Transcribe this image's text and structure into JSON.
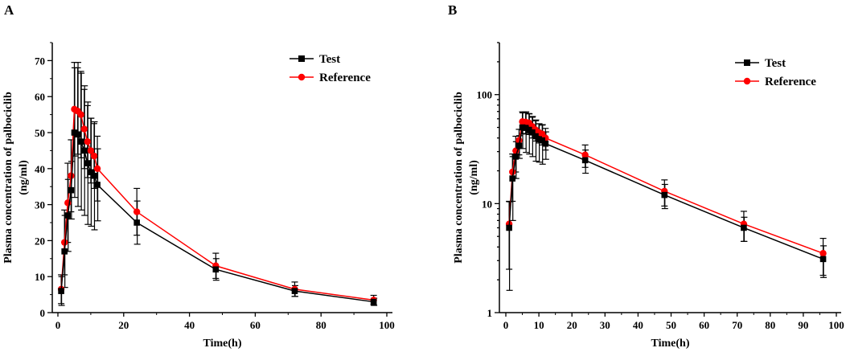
{
  "chart_data": [
    {
      "panel_label": "A",
      "type": "line",
      "yscale": "linear",
      "xlabel": "Time(h)",
      "ylabel": "Plasma concentration of palbociclib",
      "ylabel_unit": "(ng/ml)",
      "xlim": [
        0,
        100
      ],
      "ylim": [
        0,
        75
      ],
      "xticks": [
        0,
        20,
        40,
        60,
        80,
        100
      ],
      "yticks": [
        0,
        10,
        20,
        30,
        40,
        50,
        60,
        70
      ],
      "legend_position": "top-right",
      "x": [
        1,
        2,
        3,
        4,
        5,
        6,
        7,
        8,
        9,
        10,
        11,
        12,
        24,
        48,
        72,
        96
      ],
      "series": [
        {
          "name": "Test",
          "color": "#000000",
          "marker": "square",
          "values": [
            6,
            17,
            27,
            34,
            50,
            49.5,
            47.5,
            45,
            41.5,
            39,
            38,
            35.5,
            25,
            12,
            6,
            3
          ],
          "sd": [
            4,
            10,
            10,
            8,
            18,
            20,
            19,
            18,
            17,
            15,
            15,
            10,
            6,
            3,
            1.5,
            1
          ]
        },
        {
          "name": "Reference",
          "color": "#ff0000",
          "marker": "circle",
          "values": [
            6.5,
            19.5,
            30.5,
            38,
            56.5,
            56,
            55,
            51,
            47.5,
            45,
            43.5,
            40,
            28,
            13,
            6.5,
            3.5
          ],
          "sd": [
            4,
            9,
            11,
            10,
            13,
            12,
            12,
            11,
            10,
            9,
            9,
            9,
            6.5,
            3.5,
            2,
            1.3
          ]
        }
      ]
    },
    {
      "panel_label": "B",
      "type": "line",
      "yscale": "log",
      "xlabel": "Time(h)",
      "ylabel": "Plasma concentration of palbociclib",
      "ylabel_unit": "(ng/ml)",
      "xlim": [
        -2,
        101
      ],
      "ylim": [
        1,
        300
      ],
      "xticks": [
        0,
        10,
        20,
        30,
        40,
        50,
        60,
        70,
        80,
        90,
        100
      ],
      "yticks": [
        1,
        10,
        100
      ],
      "legend_position": "top-right",
      "x": [
        1,
        2,
        3,
        4,
        5,
        6,
        7,
        8,
        9,
        10,
        11,
        12,
        24,
        48,
        72,
        96
      ],
      "series": [
        {
          "name": "Test",
          "color": "#000000",
          "marker": "square",
          "values": [
            6,
            17,
            27,
            34,
            50,
            49.5,
            47.5,
            45,
            41.5,
            39,
            38,
            35.5,
            25,
            12,
            6,
            3.1
          ],
          "sd": [
            4.4,
            10,
            10,
            8,
            18,
            20,
            19,
            18,
            17,
            15,
            15,
            10,
            6,
            3,
            1.5,
            1
          ]
        },
        {
          "name": "Reference",
          "color": "#ff0000",
          "marker": "circle",
          "values": [
            6.5,
            19.5,
            30.5,
            38,
            56.5,
            56,
            55,
            51,
            47.5,
            45,
            43.5,
            40,
            28,
            13,
            6.5,
            3.5
          ],
          "sd": [
            4,
            9,
            11,
            10,
            13,
            12,
            12,
            11,
            10,
            9,
            9,
            9,
            6.5,
            3.5,
            2,
            1.3
          ]
        }
      ]
    }
  ]
}
